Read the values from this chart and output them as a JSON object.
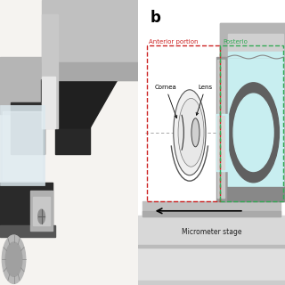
{
  "bg_color": "#ffffff",
  "b_label": "b",
  "anterior_label": "Anterior portion",
  "posterior_label": "Posterio",
  "cornea_label": "Cornea",
  "lens_label": "Lens",
  "micrometer_label": "Micrometer stage",
  "anterior_color": "#cc2222",
  "posterior_color": "#33aa55",
  "photo_bg": "#f0ece6",
  "metal_color": "#b8b8b8",
  "dark_metal": "#787878",
  "housing_color": "#aaaaaa",
  "housing_dark": "#888888",
  "cyan_fill": "#c8eef0",
  "eye_holder_color": "#707070",
  "wall_color": "#999999",
  "wall_light": "#cccccc"
}
